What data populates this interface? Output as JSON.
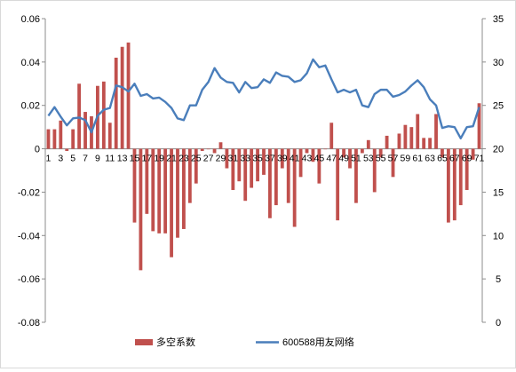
{
  "chart_data": {
    "type": "bar+line",
    "title": "",
    "x": [
      1,
      2,
      3,
      4,
      5,
      6,
      7,
      8,
      9,
      10,
      11,
      12,
      13,
      14,
      15,
      16,
      17,
      18,
      19,
      20,
      21,
      22,
      23,
      24,
      25,
      26,
      27,
      28,
      29,
      30,
      31,
      32,
      33,
      34,
      35,
      36,
      37,
      38,
      39,
      40,
      41,
      42,
      43,
      44,
      45,
      46,
      47,
      48,
      49,
      50,
      51,
      52,
      53,
      54,
      55,
      56,
      57,
      58,
      59,
      60,
      61,
      62,
      63,
      64,
      65,
      66,
      67,
      68,
      69,
      70,
      71
    ],
    "x_tick_labels": [
      "1",
      "3",
      "5",
      "7",
      "9",
      "11",
      "13",
      "15",
      "17",
      "19",
      "21",
      "23",
      "25",
      "27",
      "29",
      "31",
      "33",
      "35",
      "37",
      "39",
      "41",
      "43",
      "45",
      "47",
      "49",
      "51",
      "53",
      "55",
      "57",
      "59",
      "61",
      "63",
      "65",
      "67",
      "69",
      "71"
    ],
    "y_left": {
      "lim": [
        -0.08,
        0.06
      ],
      "ticks": [
        "-0.08",
        "-0.06",
        "-0.04",
        "-0.02",
        "0",
        "0.02",
        "0.04",
        "0.06"
      ]
    },
    "y_right": {
      "lim": [
        0,
        35
      ],
      "ticks": [
        "0",
        "5",
        "10",
        "15",
        "20",
        "25",
        "30",
        "35"
      ]
    },
    "series": [
      {
        "name": "多空系数",
        "kind": "bar",
        "axis": "left",
        "color": "#c0504d",
        "values": [
          0.009,
          0.009,
          0.013,
          -0.001,
          0.009,
          0.03,
          0.017,
          0.015,
          0.029,
          0.031,
          0.012,
          0.042,
          0.047,
          0.049,
          -0.034,
          -0.056,
          -0.03,
          -0.038,
          -0.039,
          -0.039,
          -0.05,
          -0.041,
          -0.037,
          -0.025,
          -0.016,
          -0.001,
          0.0,
          -0.002,
          0.003,
          -0.009,
          -0.019,
          -0.015,
          -0.024,
          -0.018,
          -0.015,
          -0.012,
          -0.032,
          -0.026,
          -0.009,
          -0.025,
          -0.036,
          -0.013,
          -0.002,
          -0.006,
          -0.016,
          0.0,
          0.012,
          -0.033,
          -0.004,
          -0.009,
          -0.025,
          -0.002,
          0.004,
          -0.02,
          -0.004,
          0.006,
          -0.013,
          0.007,
          0.011,
          0.01,
          0.016,
          0.005,
          0.005,
          0.016,
          -0.004,
          -0.034,
          -0.033,
          -0.026,
          -0.019,
          -0.005,
          0.021
        ]
      },
      {
        "name": "600588用友网络",
        "kind": "line",
        "axis": "right",
        "color": "#4a7ebb",
        "values": [
          23.8,
          24.8,
          23.7,
          22.7,
          23.5,
          23.6,
          23.3,
          21.9,
          23.8,
          24.5,
          24.7,
          27.3,
          27.1,
          26.6,
          27.5,
          26.1,
          26.3,
          25.8,
          25.9,
          25.4,
          24.7,
          23.5,
          23.3,
          25.0,
          25.0,
          26.8,
          27.7,
          29.3,
          28.2,
          27.7,
          27.6,
          26.5,
          27.7,
          27.0,
          27.1,
          28.0,
          27.6,
          28.8,
          28.4,
          28.3,
          27.7,
          27.9,
          28.7,
          30.3,
          29.4,
          29.6,
          28.0,
          26.5,
          26.8,
          26.5,
          26.8,
          25.0,
          24.8,
          26.3,
          26.8,
          26.8,
          26.0,
          26.2,
          26.6,
          27.3,
          27.9,
          27.1,
          25.7,
          25.0,
          22.4,
          22.6,
          22.5,
          21.2,
          22.5,
          22.6,
          24.8
        ]
      }
    ],
    "legend": {
      "placement": "bottom",
      "entries": [
        "多空系数",
        "600588用友网络"
      ]
    },
    "grid": false
  }
}
